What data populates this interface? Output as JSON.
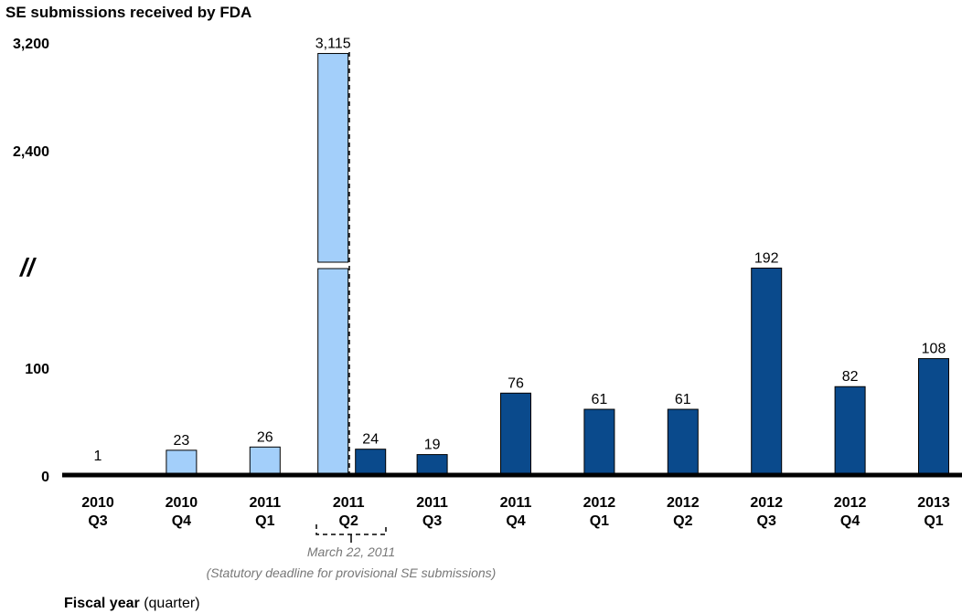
{
  "chart_data": {
    "type": "bar",
    "title": "SE submissions received by FDA",
    "xlabel": "Fiscal year",
    "xlabel_suffix": "(quarter)",
    "ylabel": "",
    "y_axis_break": true,
    "y_break_symbol": "//",
    "yticks_lower": [
      "0",
      "100"
    ],
    "yticks_upper": [
      "2,400",
      "3,200"
    ],
    "grid": false,
    "categories": [
      {
        "year": "2010",
        "quarter": "Q3"
      },
      {
        "year": "2010",
        "quarter": "Q4"
      },
      {
        "year": "2011",
        "quarter": "Q1"
      },
      {
        "year": "2011",
        "quarter": "Q2"
      },
      {
        "year": "2011",
        "quarter": "Q3"
      },
      {
        "year": "2011",
        "quarter": "Q4"
      },
      {
        "year": "2012",
        "quarter": "Q1"
      },
      {
        "year": "2012",
        "quarter": "Q2"
      },
      {
        "year": "2012",
        "quarter": "Q3"
      },
      {
        "year": "2012",
        "quarter": "Q4"
      },
      {
        "year": "2013",
        "quarter": "Q1"
      }
    ],
    "bars": [
      {
        "category_index": 0,
        "value": 1,
        "label": "1",
        "group": "provisional"
      },
      {
        "category_index": 1,
        "value": 23,
        "label": "23",
        "group": "provisional"
      },
      {
        "category_index": 2,
        "value": 26,
        "label": "26",
        "group": "provisional"
      },
      {
        "category_index": 3,
        "value": 3115,
        "label": "3,115",
        "group": "provisional"
      },
      {
        "category_index": 3,
        "value": 24,
        "label": "24",
        "group": "regular"
      },
      {
        "category_index": 4,
        "value": 19,
        "label": "19",
        "group": "regular"
      },
      {
        "category_index": 5,
        "value": 76,
        "label": "76",
        "group": "regular"
      },
      {
        "category_index": 6,
        "value": 61,
        "label": "61",
        "group": "regular"
      },
      {
        "category_index": 7,
        "value": 61,
        "label": "61",
        "group": "regular"
      },
      {
        "category_index": 8,
        "value": 192,
        "label": "192",
        "group": "regular"
      },
      {
        "category_index": 9,
        "value": 82,
        "label": "82",
        "group": "regular"
      },
      {
        "category_index": 10,
        "value": 108,
        "label": "108",
        "group": "regular"
      }
    ],
    "colors": {
      "provisional": "#a3cffa",
      "regular": "#0a4a8c",
      "axis": "#000000",
      "annotation": "#777777"
    },
    "annotation": {
      "date": "March 22, 2011",
      "note": "(Statutory deadline for provisional SE submissions)"
    }
  }
}
